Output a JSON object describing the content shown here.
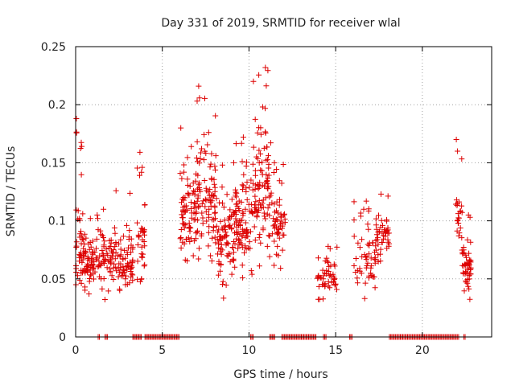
{
  "chart_data": {
    "type": "scatter",
    "title": "Day 331 of 2019, SRMTID for receiver wlal",
    "xlabel": "GPS time / hours",
    "ylabel": "SRMTID / TECUs",
    "xlim": [
      0,
      24
    ],
    "ylim": [
      0,
      0.25
    ],
    "x_ticks": [
      0,
      5,
      10,
      15,
      20
    ],
    "x_tick_labels": [
      "0",
      "5",
      "10",
      "15",
      "20"
    ],
    "y_ticks": [
      0,
      0.05,
      0.1,
      0.15,
      0.2,
      0.25
    ],
    "y_tick_labels": [
      "0",
      "0.05",
      "0.1",
      "0.15",
      "0.2",
      "0.25"
    ],
    "grid": true,
    "marker": "+",
    "series_color": "#dd0000",
    "clusters": [
      {
        "x_start": 0.0,
        "x_end": 0.45,
        "y_median": 0.075,
        "y_min": 0.045,
        "y_max": 0.188,
        "count": 45
      },
      {
        "x_start": 0.45,
        "x_end": 1.4,
        "y_median": 0.065,
        "y_min": 0.035,
        "y_max": 0.105,
        "count": 70
      },
      {
        "x_start": 1.4,
        "x_end": 2.3,
        "y_median": 0.068,
        "y_min": 0.03,
        "y_max": 0.11,
        "count": 55
      },
      {
        "x_start": 2.3,
        "x_end": 3.3,
        "y_median": 0.065,
        "y_min": 0.035,
        "y_max": 0.126,
        "count": 70
      },
      {
        "x_start": 3.5,
        "x_end": 4.0,
        "y_median": 0.09,
        "y_min": 0.045,
        "y_max": 0.159,
        "count": 35
      },
      {
        "x_start": 6.0,
        "x_end": 7.0,
        "y_median": 0.11,
        "y_min": 0.06,
        "y_max": 0.18,
        "count": 80
      },
      {
        "x_start": 7.0,
        "x_end": 8.1,
        "y_median": 0.12,
        "y_min": 0.06,
        "y_max": 0.216,
        "count": 95
      },
      {
        "x_start": 8.1,
        "x_end": 9.2,
        "y_median": 0.085,
        "y_min": 0.028,
        "y_max": 0.15,
        "count": 85
      },
      {
        "x_start": 9.2,
        "x_end": 10.2,
        "y_median": 0.105,
        "y_min": 0.045,
        "y_max": 0.172,
        "count": 90
      },
      {
        "x_start": 10.2,
        "x_end": 11.3,
        "y_median": 0.13,
        "y_min": 0.045,
        "y_max": 0.232,
        "count": 100
      },
      {
        "x_start": 11.3,
        "x_end": 12.1,
        "y_median": 0.095,
        "y_min": 0.05,
        "y_max": 0.15,
        "count": 55
      },
      {
        "x_start": 13.9,
        "x_end": 14.4,
        "y_median": 0.045,
        "y_min": 0.022,
        "y_max": 0.068,
        "count": 22
      },
      {
        "x_start": 14.4,
        "x_end": 15.1,
        "y_median": 0.055,
        "y_min": 0.03,
        "y_max": 0.078,
        "count": 30
      },
      {
        "x_start": 16.0,
        "x_end": 17.3,
        "y_median": 0.068,
        "y_min": 0.028,
        "y_max": 0.117,
        "count": 55
      },
      {
        "x_start": 17.3,
        "x_end": 18.1,
        "y_median": 0.085,
        "y_min": 0.05,
        "y_max": 0.123,
        "count": 45
      },
      {
        "x_start": 21.9,
        "x_end": 22.3,
        "y_median": 0.1,
        "y_min": 0.06,
        "y_max": 0.17,
        "count": 25
      },
      {
        "x_start": 22.3,
        "x_end": 22.8,
        "y_median": 0.06,
        "y_min": 0.03,
        "y_max": 0.105,
        "count": 50
      }
    ],
    "zero_segments": [
      [
        1.3,
        1.4
      ],
      [
        1.7,
        1.9
      ],
      [
        3.3,
        3.8
      ],
      [
        4.0,
        6.0
      ],
      [
        10.1,
        10.3
      ],
      [
        11.2,
        11.5
      ],
      [
        11.9,
        13.9
      ],
      [
        14.3,
        14.5
      ],
      [
        15.8,
        16.0
      ],
      [
        18.1,
        22.1
      ],
      [
        22.4,
        22.5
      ]
    ],
    "zero_spacing_hours": 0.07
  }
}
